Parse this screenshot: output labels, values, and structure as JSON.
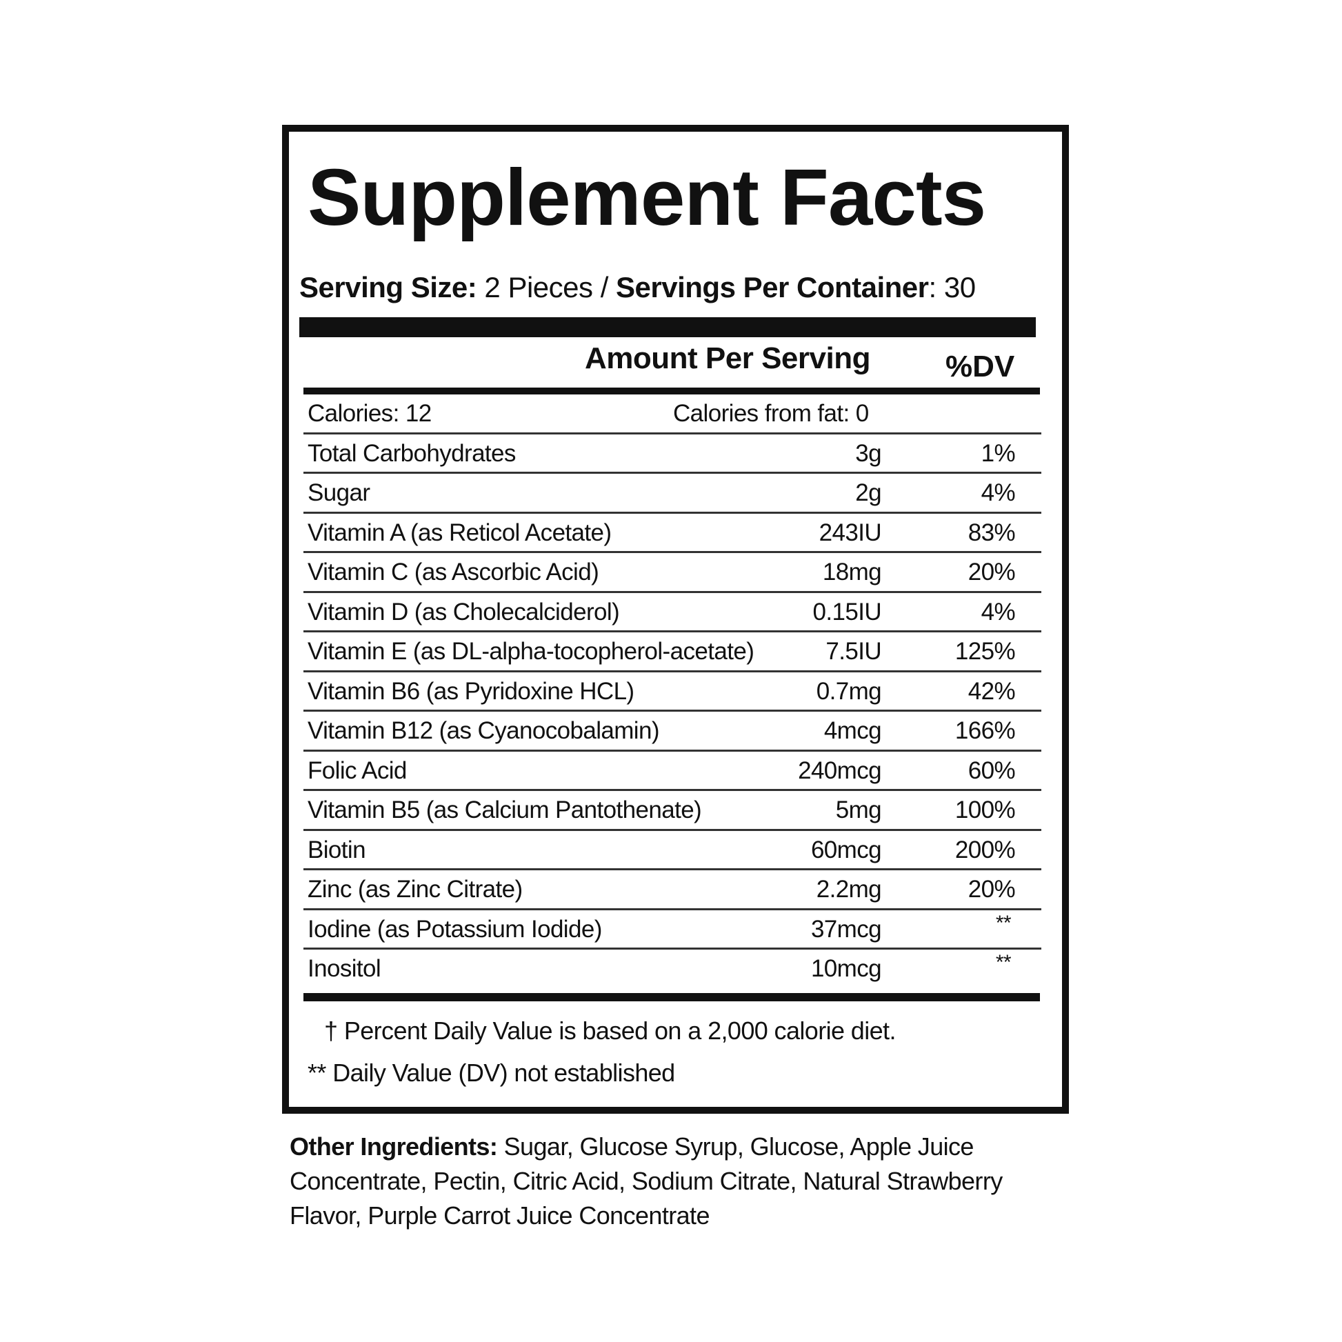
{
  "title": "Supplement Facts",
  "serving": {
    "size_label": "Serving Size:",
    "size_value": " 2 Pieces / ",
    "per_container_label": "Servings Per Container",
    "per_container_value": ": 30"
  },
  "header": {
    "amount": "Amount Per Serving",
    "dv": "%DV"
  },
  "calories": {
    "label": "Calories: 12",
    "from_fat": "Calories from fat: 0"
  },
  "rows": [
    {
      "name": "Total Carbohydrates",
      "amount": "3g",
      "dv": "1%"
    },
    {
      "name": "Sugar",
      "amount": "2g",
      "dv": "4%"
    },
    {
      "name": "Vitamin A (as Reticol Acetate)",
      "amount": "243IU",
      "dv": "83%"
    },
    {
      "name": "Vitamin C (as Ascorbic Acid)",
      "amount": "18mg",
      "dv": "20%"
    },
    {
      "name": "Vitamin D (as Cholecalciderol)",
      "amount": "0.15IU",
      "dv": "4%"
    },
    {
      "name": "Vitamin E (as DL-alpha-tocopherol-acetate)",
      "amount": "7.5IU",
      "dv": "125%"
    },
    {
      "name": "Vitamin B6 (as Pyridoxine HCL)",
      "amount": "0.7mg",
      "dv": "42%"
    },
    {
      "name": "Vitamin B12 (as Cyanocobalamin)",
      "amount": "4mcg",
      "dv": "166%"
    },
    {
      "name": "Folic Acid",
      "amount": "240mcg",
      "dv": "60%"
    },
    {
      "name": "Vitamin B5 (as Calcium Pantothenate)",
      "amount": "5mg",
      "dv": "100%"
    },
    {
      "name": "Biotin",
      "amount": "60mcg",
      "dv": "200%"
    },
    {
      "name": "Zinc (as Zinc Citrate)",
      "amount": "2.2mg",
      "dv": "20%"
    },
    {
      "name": "Iodine (as Potassium Iodide)",
      "amount": "37mcg",
      "dv": "**"
    },
    {
      "name": "Inositol",
      "amount": "10mcg",
      "dv": "**"
    }
  ],
  "footnotes": {
    "dv_basis": "† Percent Daily Value is based on a 2,000 calorie diet.",
    "not_established": "** Daily Value (DV) not established"
  },
  "other_ingredients": {
    "label": "Other Ingredients:",
    "text": " Sugar, Glucose Syrup, Glucose, Apple Juice Concentrate, Pectin, Citric Acid, Sodium Citrate, Natural Strawberry Flavor, Purple Carrot Juice Concentrate"
  }
}
